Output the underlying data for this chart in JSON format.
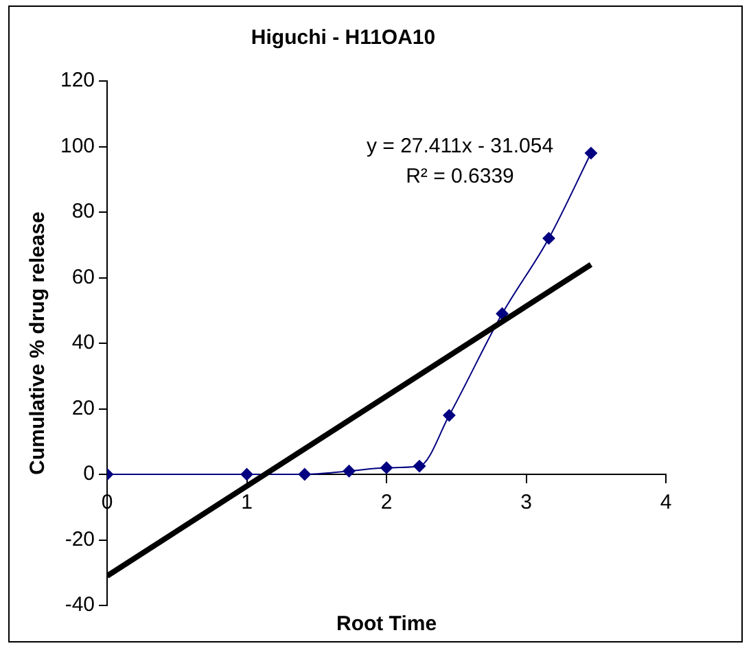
{
  "chart_data": {
    "type": "line",
    "title": "Higuchi - H11OA10",
    "xlabel": "Root Time",
    "ylabel": "Cumulative % drug release",
    "x": [
      0,
      1,
      1.414,
      1.732,
      2,
      2.236,
      2.449,
      2.828,
      3.162,
      3.464
    ],
    "series": [
      {
        "color": "#000080",
        "values": [
          0,
          0,
          0,
          1,
          2,
          2.5,
          18,
          49,
          72,
          98
        ],
        "marker": "diamond"
      },
      {
        "type": "line",
        "color": "#000000",
        "x": [
          0,
          3.464
        ],
        "values": [
          -31,
          64
        ],
        "marker": "none"
      }
    ],
    "annotations": [
      "y = 27.411x - 31.054",
      "R² = 0.6339"
    ],
    "xlim": [
      0,
      4
    ],
    "xticks": [
      0,
      1,
      2,
      3,
      4
    ],
    "ylim": [
      -40,
      120
    ],
    "yticks": [
      -40,
      -20,
      0,
      20,
      40,
      60,
      80,
      100,
      120
    ],
    "grid": false,
    "legend": false
  }
}
